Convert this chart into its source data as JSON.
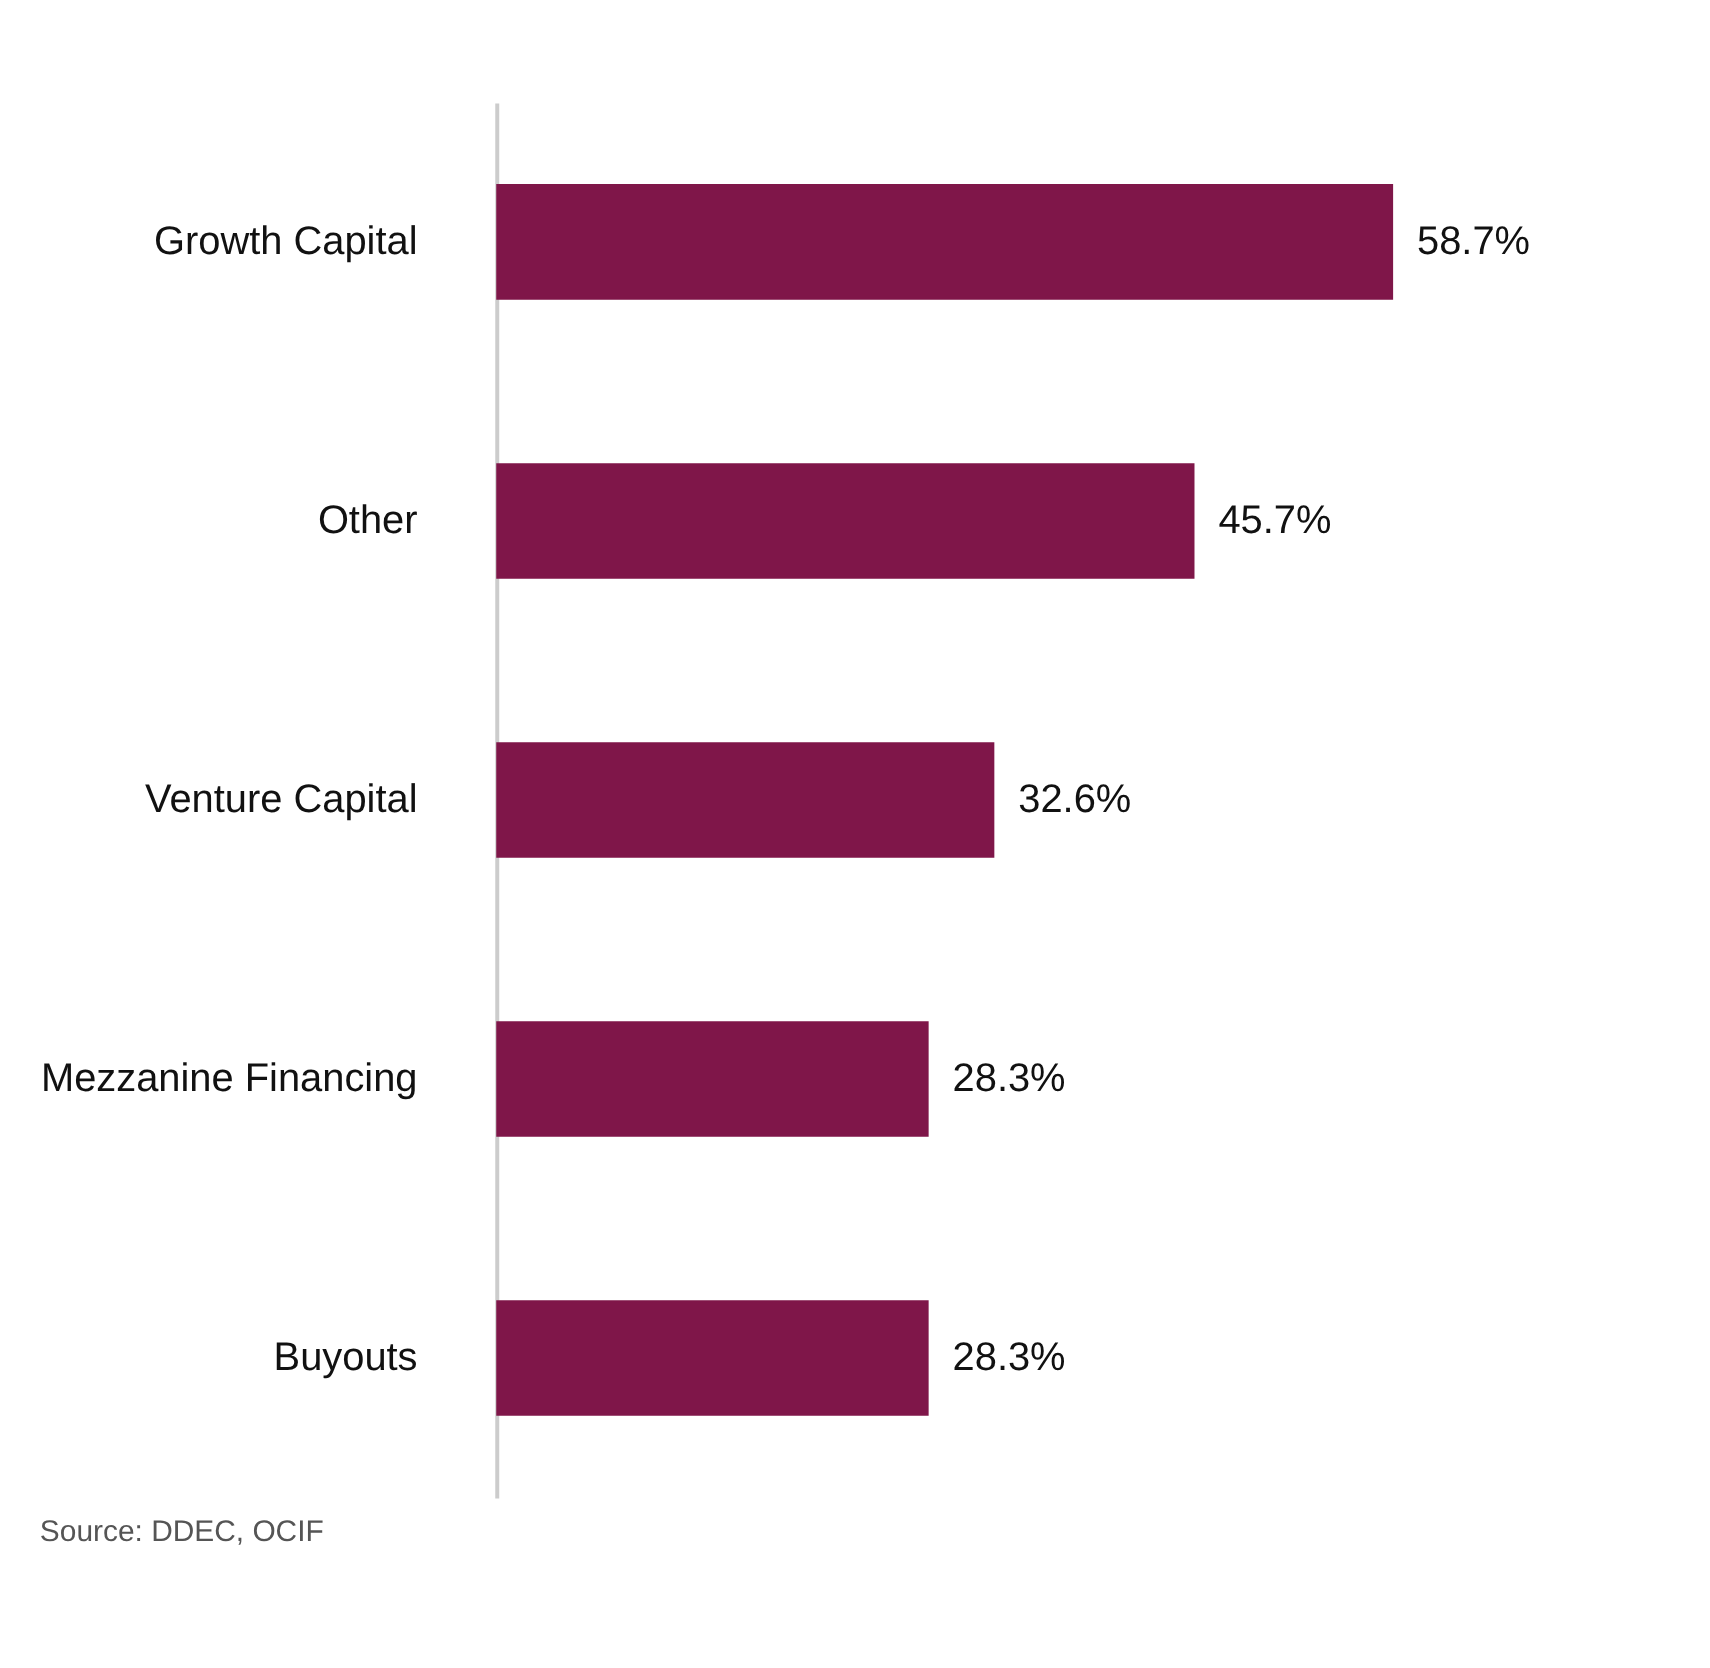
{
  "chart_data": {
    "type": "bar",
    "orientation": "horizontal",
    "categories": [
      "Growth Capital",
      "Other",
      "Venture Capital",
      "Mezzanine Financing",
      "Buyouts"
    ],
    "values": [
      58.7,
      45.7,
      32.6,
      28.3,
      28.3
    ],
    "value_labels": [
      "58.7%",
      "45.7%",
      "32.6%",
      "28.3%",
      "28.3%"
    ],
    "color": "#7f1649",
    "tick_labels": "y",
    "grid": false,
    "annotations": [
      "Source: DDEC,  OCIF"
    ]
  }
}
